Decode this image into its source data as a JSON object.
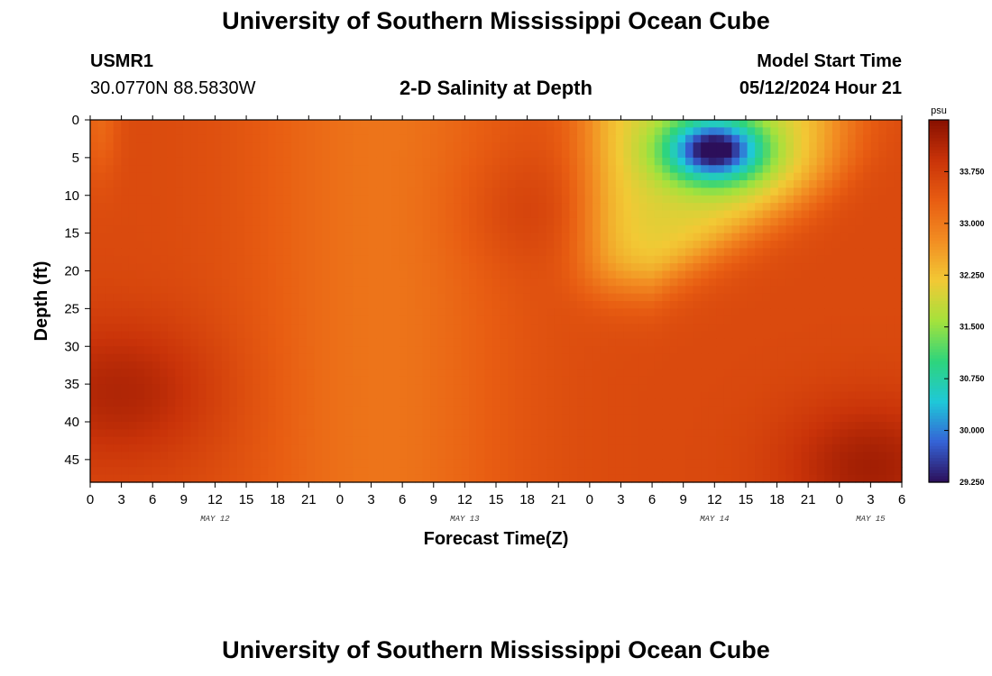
{
  "header": {
    "title": "University of Southern Mississippi Ocean Cube",
    "station": "USMR1",
    "coords": "30.0770N  88.5830W",
    "subtitle": "2-D Salinity at Depth",
    "model_label": "Model Start Time",
    "model_time": "05/12/2024 Hour 21"
  },
  "footer": {
    "title": "University of Southern Mississippi Ocean Cube"
  },
  "colors": {
    "background": "#ffffff",
    "axis": "#000000",
    "colormap": [
      "#2c0f5a",
      "#3563d6",
      "#1fc8d8",
      "#2ed47c",
      "#a4e23c",
      "#f2c935",
      "#f28d22",
      "#e85d12",
      "#c93309",
      "#861000"
    ]
  },
  "chart_data": {
    "type": "heatmap",
    "title": "2-D Salinity at Depth",
    "xlabel": "Forecast Time(Z)",
    "ylabel": "Depth (ft)",
    "x_tick_labels": [
      "0",
      "3",
      "6",
      "9",
      "12",
      "15",
      "18",
      "21",
      "0",
      "3",
      "6",
      "9",
      "12",
      "15",
      "18",
      "21",
      "0",
      "3",
      "6",
      "9",
      "12",
      "15",
      "18",
      "21",
      "0",
      "3",
      "6"
    ],
    "x_range_hours": [
      0,
      78
    ],
    "date_labels": [
      {
        "label": "MAY 12",
        "hour": 12
      },
      {
        "label": "MAY 13",
        "hour": 36
      },
      {
        "label": "MAY 14",
        "hour": 60
      },
      {
        "label": "MAY 15",
        "hour": 75
      }
    ],
    "y_ticks": [
      0,
      5,
      10,
      15,
      20,
      25,
      30,
      35,
      40,
      45
    ],
    "y_range": [
      0,
      48
    ],
    "y_inverted": true,
    "colorbar": {
      "unit": "psu",
      "range": [
        29.25,
        34.5
      ],
      "tick_labels": [
        "33.750",
        "33.000",
        "32.250",
        "31.500",
        "30.750",
        "30.000",
        "29.250"
      ],
      "tick_values": [
        33.75,
        33.0,
        32.25,
        31.5,
        30.75,
        30.0,
        29.25
      ]
    },
    "field": {
      "base": 33.6,
      "features": [
        {
          "type": "fresh_core",
          "hour": 60,
          "depth": 4,
          "min": 29.25
        },
        {
          "type": "plume_lower_bound_depth",
          "value": 22
        },
        {
          "type": "salty_core",
          "hour": 3,
          "depth": 36,
          "max": 34.3
        },
        {
          "type": "salty_core",
          "hour": 75,
          "depth": 46,
          "max": 34.4
        },
        {
          "type": "lower_salinity_band",
          "hour": 28,
          "value": 33.0
        }
      ]
    }
  }
}
